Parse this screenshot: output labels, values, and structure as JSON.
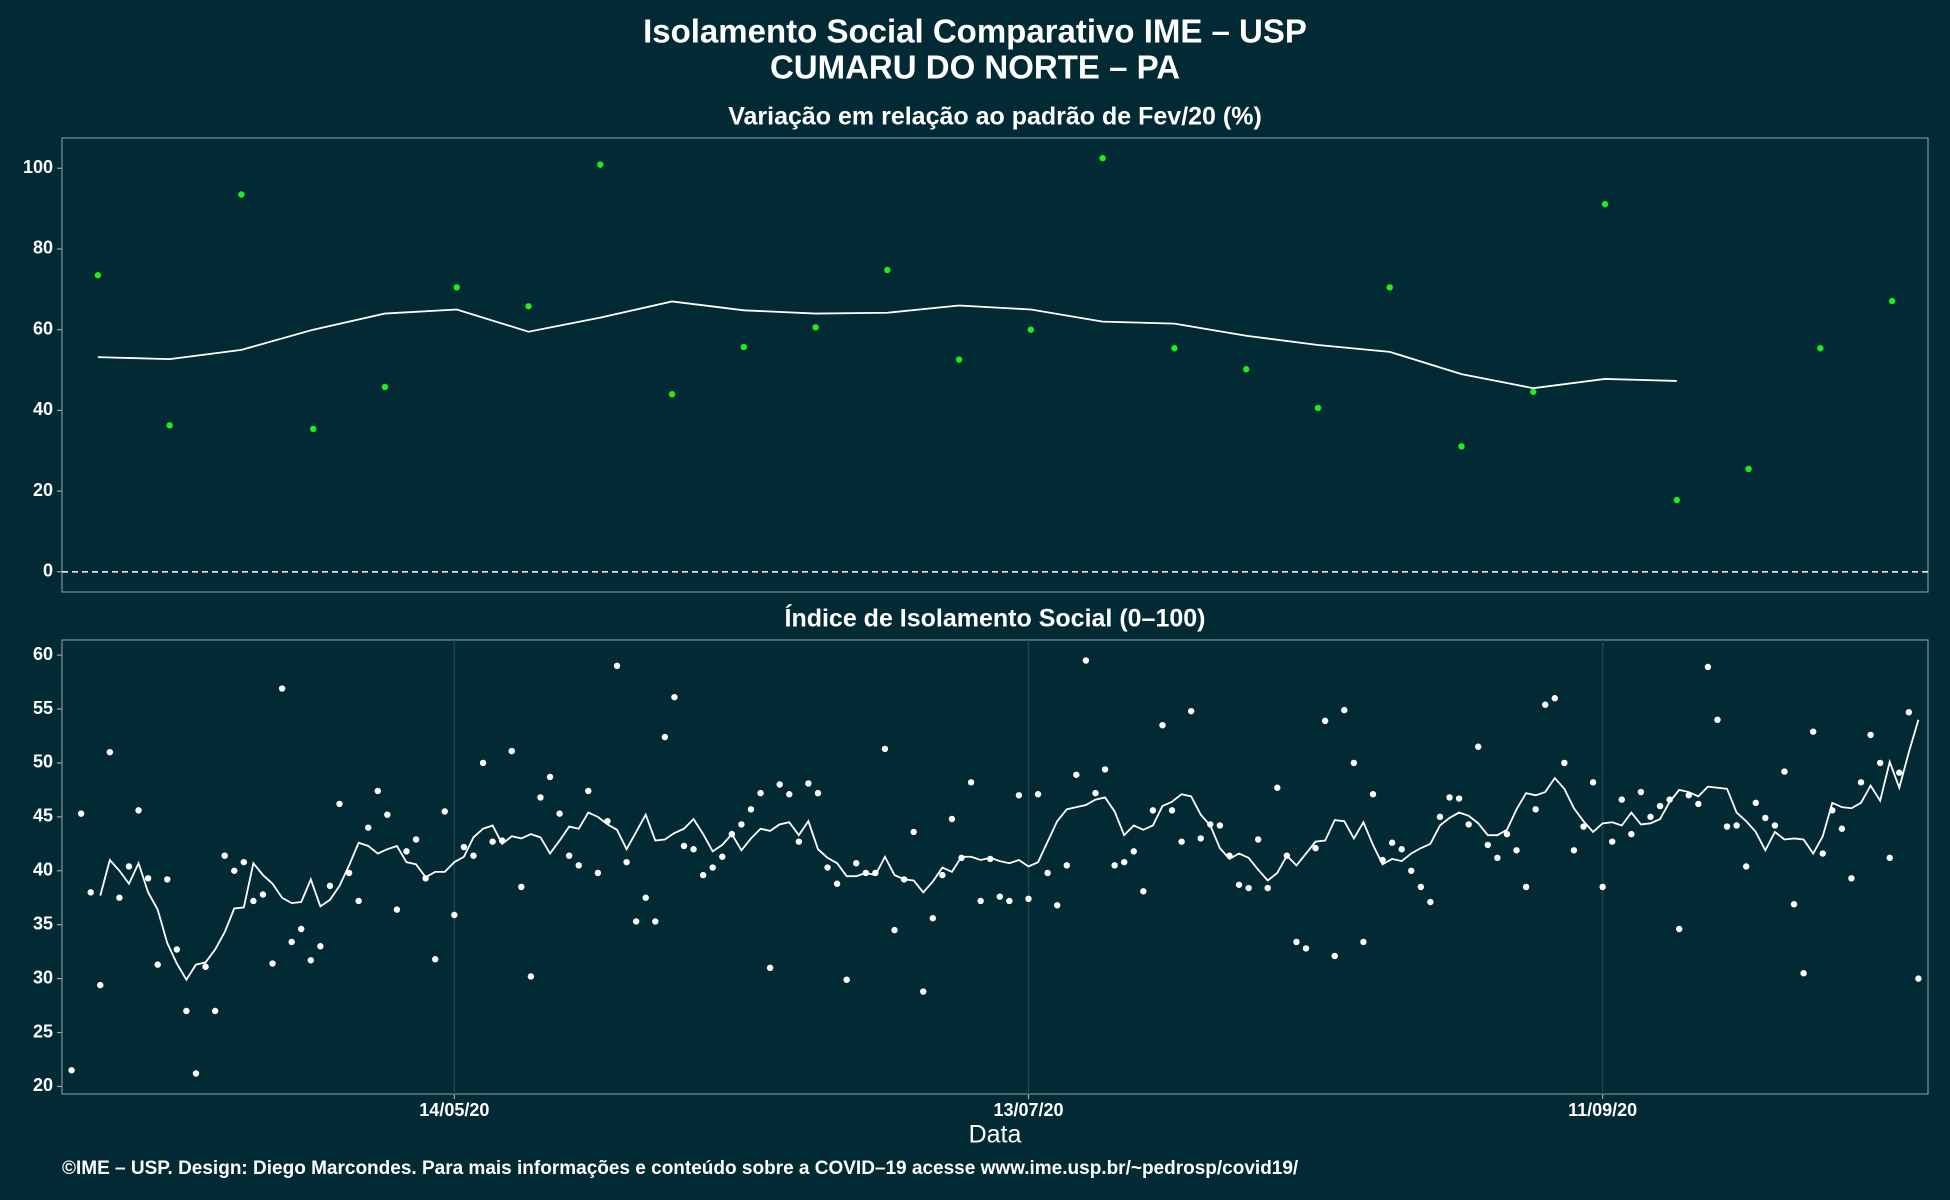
{
  "header": {
    "title": "Isolamento Social Comparativo IME – USP",
    "subtitle": "CUMARU DO NORTE – PA"
  },
  "footer": "©IME – USP. Design: Diego Marcondes. Para mais informações e conteúdo sobre a COVID–19 acesse www.ime.usp.br/~pedrosp/covid19/",
  "chart_data": [
    {
      "type": "scatter",
      "title": "Variação em relação ao padrão de Fev/20 (%)",
      "categories": [
        null,
        null,
        null,
        null,
        null,
        null,
        null,
        null,
        null,
        null,
        null,
        null,
        null,
        null,
        null,
        null,
        null,
        null,
        null,
        null,
        null,
        null,
        null,
        null,
        null,
        null
      ],
      "series": [
        {
          "mode": "markers",
          "color": "#1aef1a",
          "values": [
            73.5,
            36.3,
            93.5,
            35.4,
            45.8,
            70.5,
            65.8,
            100.9,
            44,
            55.7,
            60.6,
            74.8,
            52.6,
            60,
            102.5,
            55.4,
            50.2,
            40.6,
            70.5,
            31.1,
            44.6,
            91.1,
            17.8,
            25.5,
            55.4,
            67.1
          ]
        },
        {
          "mode": "line",
          "color": "#ffffff",
          "values": [
            53.2,
            52.7,
            55,
            60,
            64,
            65,
            59.5,
            63,
            67,
            64.8,
            64,
            64.2,
            66,
            65,
            62,
            61.5,
            58.5,
            56.2,
            54.5,
            49,
            45.5,
            47.8,
            47.3,
            null,
            null,
            null
          ]
        }
      ],
      "ylim": [
        -5,
        107.5
      ],
      "yticks": [
        0,
        20,
        40,
        60,
        80,
        100
      ],
      "hline": 0,
      "grid": false
    },
    {
      "type": "scatter",
      "title": "Índice de Isolamento Social (0–100)",
      "xlabel": "Data",
      "x": [
        "2020-04-04",
        "2020-04-05",
        "2020-04-06",
        "2020-04-07",
        "2020-04-08",
        "2020-04-09",
        "2020-04-10",
        "2020-04-11",
        "2020-04-12",
        "2020-04-13",
        "2020-04-14",
        "2020-04-15",
        "2020-04-16",
        "2020-04-17",
        "2020-04-18",
        "2020-04-19",
        "2020-04-20",
        "2020-04-21",
        "2020-04-22",
        "2020-04-23",
        "2020-04-24",
        "2020-04-25",
        "2020-04-26",
        "2020-04-27",
        "2020-04-28",
        "2020-04-29",
        "2020-04-30",
        "2020-05-01",
        "2020-05-02",
        "2020-05-03",
        "2020-05-04",
        "2020-05-05",
        "2020-05-06",
        "2020-05-07",
        "2020-05-08",
        "2020-05-09",
        "2020-05-10",
        "2020-05-11",
        "2020-05-12",
        "2020-05-13",
        "2020-05-14",
        "2020-05-15",
        "2020-05-16",
        "2020-05-17",
        "2020-05-18",
        "2020-05-19",
        "2020-05-20",
        "2020-05-21",
        "2020-05-22",
        "2020-05-23",
        "2020-05-24",
        "2020-05-25",
        "2020-05-26",
        "2020-05-27",
        "2020-05-28",
        "2020-05-29",
        "2020-05-30",
        "2020-05-31",
        "2020-06-01",
        "2020-06-02",
        "2020-06-03",
        "2020-06-04",
        "2020-06-05",
        "2020-06-06",
        "2020-06-07",
        "2020-06-08",
        "2020-06-09",
        "2020-06-10",
        "2020-06-11",
        "2020-06-12",
        "2020-06-13",
        "2020-06-14",
        "2020-06-15",
        "2020-06-16",
        "2020-06-17",
        "2020-06-18",
        "2020-06-19",
        "2020-06-20",
        "2020-06-21",
        "2020-06-22",
        "2020-06-23",
        "2020-06-24",
        "2020-06-25",
        "2020-06-26",
        "2020-06-27",
        "2020-06-28",
        "2020-06-29",
        "2020-06-30",
        "2020-07-01",
        "2020-07-02",
        "2020-07-03",
        "2020-07-04",
        "2020-07-05",
        "2020-07-06",
        "2020-07-07",
        "2020-07-08",
        "2020-07-09",
        "2020-07-10",
        "2020-07-11",
        "2020-07-12",
        "2020-07-13",
        "2020-07-14",
        "2020-07-15",
        "2020-07-16",
        "2020-07-17",
        "2020-07-18",
        "2020-07-19",
        "2020-07-20",
        "2020-07-21",
        "2020-07-22",
        "2020-07-23",
        "2020-07-24",
        "2020-07-25",
        "2020-07-26",
        "2020-07-27",
        "2020-07-28",
        "2020-07-29",
        "2020-07-30",
        "2020-07-31",
        "2020-08-01",
        "2020-08-02",
        "2020-08-03",
        "2020-08-04",
        "2020-08-05",
        "2020-08-06",
        "2020-08-07",
        "2020-08-08",
        "2020-08-09",
        "2020-08-10",
        "2020-08-11",
        "2020-08-12",
        "2020-08-13",
        "2020-08-14",
        "2020-08-15",
        "2020-08-16",
        "2020-08-17",
        "2020-08-18",
        "2020-08-19",
        "2020-08-20",
        "2020-08-21",
        "2020-08-22",
        "2020-08-23",
        "2020-08-24",
        "2020-08-25",
        "2020-08-26",
        "2020-08-27",
        "2020-08-28",
        "2020-08-29",
        "2020-08-30",
        "2020-08-31",
        "2020-09-01",
        "2020-09-02",
        "2020-09-03",
        "2020-09-04",
        "2020-09-05",
        "2020-09-06",
        "2020-09-07",
        "2020-09-08",
        "2020-09-09",
        "2020-09-10",
        "2020-09-11",
        "2020-09-12",
        "2020-09-13",
        "2020-09-14",
        "2020-09-15",
        "2020-09-16",
        "2020-09-17",
        "2020-09-18",
        "2020-09-19",
        "2020-09-20",
        "2020-09-21",
        "2020-09-22",
        "2020-09-23",
        "2020-09-24",
        "2020-09-25",
        "2020-09-26",
        "2020-09-27",
        "2020-09-28",
        "2020-09-29",
        "2020-09-30",
        "2020-10-01",
        "2020-10-02",
        "2020-10-03",
        "2020-10-04",
        "2020-10-05",
        "2020-10-06",
        "2020-10-07",
        "2020-10-08",
        "2020-10-09",
        "2020-10-10",
        "2020-10-11",
        "2020-10-12",
        "2020-10-13",
        "2020-10-14"
      ],
      "series": [
        {
          "mode": "markers",
          "color": "#ffffff",
          "values": [
            21.5,
            45.3,
            38,
            29.4,
            51,
            37.5,
            40.4,
            45.6,
            39.3,
            31.3,
            39.2,
            32.7,
            27,
            21.2,
            31.1,
            27,
            41.4,
            40,
            40.8,
            37.2,
            37.8,
            31.4,
            56.9,
            33.4,
            34.6,
            31.7,
            33,
            38.6,
            46.2,
            39.8,
            37.2,
            44,
            47.4,
            45.2,
            36.4,
            41.8,
            42.9,
            39.3,
            31.8,
            45.5,
            35.9,
            42.2,
            41.4,
            50,
            42.7,
            42.8,
            51.1,
            38.5,
            30.2,
            46.8,
            48.7,
            45.3,
            41.4,
            40.5,
            47.4,
            39.8,
            44.6,
            59,
            40.8,
            35.3,
            37.5,
            35.3,
            52.4,
            56.1,
            42.3,
            42,
            39.6,
            40.3,
            41.3,
            43.4,
            44.3,
            45.7,
            47.2,
            31,
            48,
            47.1,
            42.7,
            48.1,
            47.2,
            40.3,
            38.8,
            29.9,
            40.7,
            39.8,
            39.8,
            51.3,
            34.5,
            39.2,
            43.6,
            28.8,
            35.6,
            39.6,
            44.8,
            41.2,
            48.2,
            37.2,
            41.1,
            37.6,
            37.2,
            47,
            37.4,
            47.1,
            39.8,
            36.8,
            40.5,
            48.9,
            59.5,
            47.2,
            49.4,
            40.5,
            40.8,
            41.8,
            38.1,
            45.6,
            53.5,
            45.6,
            42.7,
            54.8,
            43,
            44.3,
            44.2,
            41.4,
            38.7,
            38.4,
            42.9,
            38.4,
            47.7,
            41.4,
            33.4,
            32.8,
            42.1,
            53.9,
            32.1,
            54.9,
            50,
            33.4,
            47.1,
            41,
            42.6,
            42,
            40,
            38.5,
            37.1,
            45,
            46.8,
            46.7,
            44.3,
            51.5,
            42.4,
            41.2,
            43.4,
            41.9,
            38.5,
            45.7,
            55.4,
            56,
            50,
            41.9,
            44.1,
            48.2,
            38.5,
            42.7,
            46.6,
            43.4,
            47.3,
            45,
            46,
            46.6,
            34.6,
            47,
            46.2,
            58.9,
            54,
            44.1,
            44.2,
            40.4,
            46.3,
            44.9,
            44.2,
            49.2,
            36.9,
            30.5,
            52.9,
            41.6,
            45.6,
            43.9,
            39.3,
            48.2,
            52.6,
            50,
            41.2,
            49.1,
            54.7,
            30
          ]
        },
        {
          "mode": "line",
          "color": "#ffffff",
          "values": [
            null,
            null,
            null,
            37.7,
            41,
            40,
            38.8,
            40.7,
            38,
            36.4,
            33.3,
            31.4,
            29.9,
            31.3,
            31.5,
            32.7,
            34.3,
            36.5,
            36.6,
            40.7,
            39.6,
            38.8,
            37.5,
            37,
            37.1,
            39.2,
            36.7,
            37.3,
            38.6,
            40.5,
            42.6,
            42.3,
            41.6,
            42,
            42.3,
            40.8,
            40.6,
            39.4,
            39.9,
            39.9,
            40.8,
            41.3,
            43.1,
            43.9,
            44.2,
            42.5,
            43.2,
            43,
            43.4,
            43.1,
            41.6,
            42.8,
            44.1,
            43.9,
            45.4,
            45,
            44.3,
            43.8,
            42,
            43.6,
            45.2,
            42.8,
            42.9,
            43.5,
            43.9,
            44.8,
            43.4,
            41.8,
            42.4,
            43.4,
            41.9,
            43,
            43.9,
            43.7,
            44.3,
            44.5,
            43.3,
            44.6,
            42,
            41.2,
            40.7,
            39.5,
            39.5,
            39.8,
            39.6,
            41.3,
            39.6,
            39.2,
            39.1,
            38,
            39,
            40.3,
            39.9,
            41.3,
            41.3,
            41,
            41.2,
            40.9,
            40.7,
            41,
            40.4,
            40.8,
            42.7,
            44.6,
            45.7,
            45.9,
            46.1,
            46.6,
            46.8,
            45.5,
            43.3,
            44.2,
            43.8,
            44.2,
            46,
            46.4,
            47.1,
            46.9,
            45.2,
            44.2,
            42.1,
            41.1,
            41.6,
            41.2,
            40.1,
            39.1,
            39.8,
            41.4,
            40.5,
            41.6,
            42.7,
            42.8,
            44.7,
            44.6,
            43,
            44.5,
            42.4,
            40.6,
            41.1,
            40.9,
            41.6,
            42.1,
            42.5,
            44.2,
            44.9,
            45.4,
            45.1,
            44.4,
            43.3,
            43.3,
            43.8,
            45.7,
            47.2,
            47,
            47.3,
            48.6,
            47.6,
            45.8,
            44.6,
            43.6,
            44.4,
            44.5,
            44.2,
            45.4,
            44.3,
            44.4,
            44.8,
            46.4,
            47.5,
            47.3,
            46.9,
            47.8,
            47.7,
            47.6,
            45.4,
            44.6,
            43.6,
            41.9,
            43.6,
            42.9,
            43,
            42.9,
            41.6,
            43.2,
            46.3,
            45.9,
            45.8,
            46.3,
            47.9,
            46.5,
            50.1,
            47.7,
            51,
            54
          ]
        }
      ],
      "xlim": [
        "2020-04-03",
        "2020-10-15"
      ],
      "xticks": [
        {
          "value": "2020-05-14",
          "label": "14/05/20"
        },
        {
          "value": "2020-07-13",
          "label": "13/07/20"
        },
        {
          "value": "2020-09-11",
          "label": "11/09/20"
        }
      ],
      "ylim": [
        19.3,
        61.4
      ],
      "yticks": [
        20,
        25,
        30,
        35,
        40,
        45,
        50,
        55,
        60
      ],
      "grid": true
    }
  ]
}
